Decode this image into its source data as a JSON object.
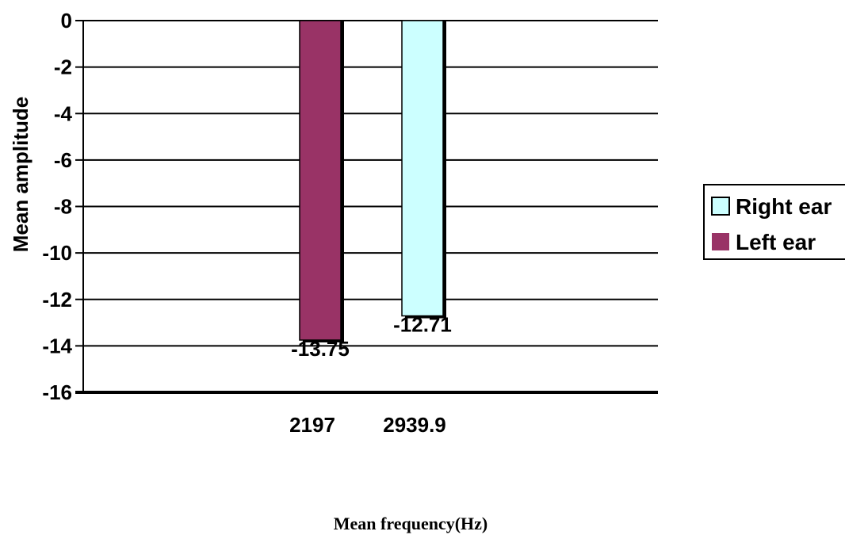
{
  "chart_data": {
    "type": "bar",
    "categories": [
      "2197",
      "2939.9"
    ],
    "series": [
      {
        "name": "Left ear",
        "values": [
          -13.75,
          null
        ],
        "color": "#993366",
        "data_labels": [
          "-13.75",
          ""
        ]
      },
      {
        "name": "Right ear",
        "values": [
          null,
          -12.71
        ],
        "color": "#ccffff",
        "data_labels": [
          "",
          "-12.71"
        ]
      }
    ],
    "title": "",
    "xlabel": "Mean frequency(Hz)",
    "ylabel": "Mean amplitude",
    "ylim": [
      -16,
      0
    ],
    "yticks": [
      "0",
      "-2",
      "-4",
      "-6",
      "-8",
      "-10",
      "-12",
      "-14",
      "-16"
    ],
    "grid": true,
    "legend_position": "right",
    "legend": [
      "Right ear",
      "Left ear"
    ]
  }
}
